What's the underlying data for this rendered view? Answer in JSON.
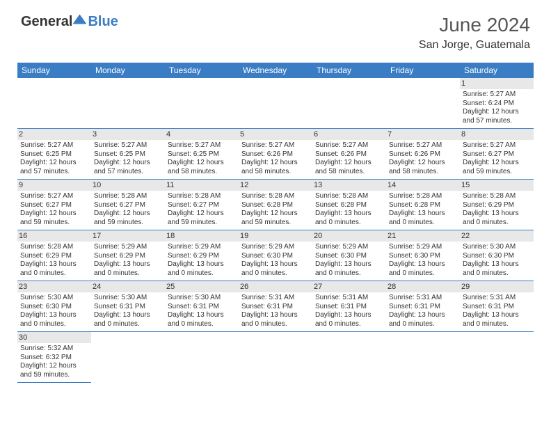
{
  "brand": {
    "part1": "General",
    "part2": "Blue"
  },
  "title": "June 2024",
  "location": "San Jorge, Guatemala",
  "colors": {
    "header_bg": "#3b7dc4",
    "header_text": "#ffffff",
    "daynum_bg": "#e8e8e8",
    "cell_border": "#3b7dc4",
    "text": "#333333",
    "title_text": "#555555"
  },
  "weekdays": [
    "Sunday",
    "Monday",
    "Tuesday",
    "Wednesday",
    "Thursday",
    "Friday",
    "Saturday"
  ],
  "weeks": [
    [
      null,
      null,
      null,
      null,
      null,
      null,
      {
        "n": "1",
        "sr": "Sunrise: 5:27 AM",
        "ss": "Sunset: 6:24 PM",
        "d1": "Daylight: 12 hours",
        "d2": "and 57 minutes."
      }
    ],
    [
      {
        "n": "2",
        "sr": "Sunrise: 5:27 AM",
        "ss": "Sunset: 6:25 PM",
        "d1": "Daylight: 12 hours",
        "d2": "and 57 minutes."
      },
      {
        "n": "3",
        "sr": "Sunrise: 5:27 AM",
        "ss": "Sunset: 6:25 PM",
        "d1": "Daylight: 12 hours",
        "d2": "and 57 minutes."
      },
      {
        "n": "4",
        "sr": "Sunrise: 5:27 AM",
        "ss": "Sunset: 6:25 PM",
        "d1": "Daylight: 12 hours",
        "d2": "and 58 minutes."
      },
      {
        "n": "5",
        "sr": "Sunrise: 5:27 AM",
        "ss": "Sunset: 6:26 PM",
        "d1": "Daylight: 12 hours",
        "d2": "and 58 minutes."
      },
      {
        "n": "6",
        "sr": "Sunrise: 5:27 AM",
        "ss": "Sunset: 6:26 PM",
        "d1": "Daylight: 12 hours",
        "d2": "and 58 minutes."
      },
      {
        "n": "7",
        "sr": "Sunrise: 5:27 AM",
        "ss": "Sunset: 6:26 PM",
        "d1": "Daylight: 12 hours",
        "d2": "and 58 minutes."
      },
      {
        "n": "8",
        "sr": "Sunrise: 5:27 AM",
        "ss": "Sunset: 6:27 PM",
        "d1": "Daylight: 12 hours",
        "d2": "and 59 minutes."
      }
    ],
    [
      {
        "n": "9",
        "sr": "Sunrise: 5:27 AM",
        "ss": "Sunset: 6:27 PM",
        "d1": "Daylight: 12 hours",
        "d2": "and 59 minutes."
      },
      {
        "n": "10",
        "sr": "Sunrise: 5:28 AM",
        "ss": "Sunset: 6:27 PM",
        "d1": "Daylight: 12 hours",
        "d2": "and 59 minutes."
      },
      {
        "n": "11",
        "sr": "Sunrise: 5:28 AM",
        "ss": "Sunset: 6:27 PM",
        "d1": "Daylight: 12 hours",
        "d2": "and 59 minutes."
      },
      {
        "n": "12",
        "sr": "Sunrise: 5:28 AM",
        "ss": "Sunset: 6:28 PM",
        "d1": "Daylight: 12 hours",
        "d2": "and 59 minutes."
      },
      {
        "n": "13",
        "sr": "Sunrise: 5:28 AM",
        "ss": "Sunset: 6:28 PM",
        "d1": "Daylight: 13 hours",
        "d2": "and 0 minutes."
      },
      {
        "n": "14",
        "sr": "Sunrise: 5:28 AM",
        "ss": "Sunset: 6:28 PM",
        "d1": "Daylight: 13 hours",
        "d2": "and 0 minutes."
      },
      {
        "n": "15",
        "sr": "Sunrise: 5:28 AM",
        "ss": "Sunset: 6:29 PM",
        "d1": "Daylight: 13 hours",
        "d2": "and 0 minutes."
      }
    ],
    [
      {
        "n": "16",
        "sr": "Sunrise: 5:28 AM",
        "ss": "Sunset: 6:29 PM",
        "d1": "Daylight: 13 hours",
        "d2": "and 0 minutes."
      },
      {
        "n": "17",
        "sr": "Sunrise: 5:29 AM",
        "ss": "Sunset: 6:29 PM",
        "d1": "Daylight: 13 hours",
        "d2": "and 0 minutes."
      },
      {
        "n": "18",
        "sr": "Sunrise: 5:29 AM",
        "ss": "Sunset: 6:29 PM",
        "d1": "Daylight: 13 hours",
        "d2": "and 0 minutes."
      },
      {
        "n": "19",
        "sr": "Sunrise: 5:29 AM",
        "ss": "Sunset: 6:30 PM",
        "d1": "Daylight: 13 hours",
        "d2": "and 0 minutes."
      },
      {
        "n": "20",
        "sr": "Sunrise: 5:29 AM",
        "ss": "Sunset: 6:30 PM",
        "d1": "Daylight: 13 hours",
        "d2": "and 0 minutes."
      },
      {
        "n": "21",
        "sr": "Sunrise: 5:29 AM",
        "ss": "Sunset: 6:30 PM",
        "d1": "Daylight: 13 hours",
        "d2": "and 0 minutes."
      },
      {
        "n": "22",
        "sr": "Sunrise: 5:30 AM",
        "ss": "Sunset: 6:30 PM",
        "d1": "Daylight: 13 hours",
        "d2": "and 0 minutes."
      }
    ],
    [
      {
        "n": "23",
        "sr": "Sunrise: 5:30 AM",
        "ss": "Sunset: 6:30 PM",
        "d1": "Daylight: 13 hours",
        "d2": "and 0 minutes."
      },
      {
        "n": "24",
        "sr": "Sunrise: 5:30 AM",
        "ss": "Sunset: 6:31 PM",
        "d1": "Daylight: 13 hours",
        "d2": "and 0 minutes."
      },
      {
        "n": "25",
        "sr": "Sunrise: 5:30 AM",
        "ss": "Sunset: 6:31 PM",
        "d1": "Daylight: 13 hours",
        "d2": "and 0 minutes."
      },
      {
        "n": "26",
        "sr": "Sunrise: 5:31 AM",
        "ss": "Sunset: 6:31 PM",
        "d1": "Daylight: 13 hours",
        "d2": "and 0 minutes."
      },
      {
        "n": "27",
        "sr": "Sunrise: 5:31 AM",
        "ss": "Sunset: 6:31 PM",
        "d1": "Daylight: 13 hours",
        "d2": "and 0 minutes."
      },
      {
        "n": "28",
        "sr": "Sunrise: 5:31 AM",
        "ss": "Sunset: 6:31 PM",
        "d1": "Daylight: 13 hours",
        "d2": "and 0 minutes."
      },
      {
        "n": "29",
        "sr": "Sunrise: 5:31 AM",
        "ss": "Sunset: 6:31 PM",
        "d1": "Daylight: 13 hours",
        "d2": "and 0 minutes."
      }
    ],
    [
      {
        "n": "30",
        "sr": "Sunrise: 5:32 AM",
        "ss": "Sunset: 6:32 PM",
        "d1": "Daylight: 12 hours",
        "d2": "and 59 minutes."
      },
      null,
      null,
      null,
      null,
      null,
      null
    ]
  ]
}
